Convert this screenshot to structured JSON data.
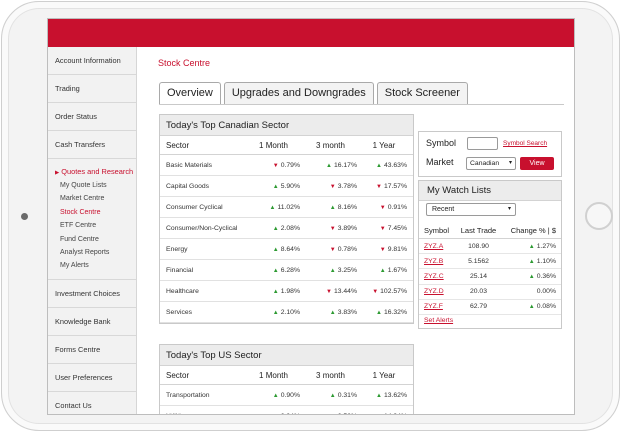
{
  "sidebar": {
    "items_top": [
      "Account Information",
      "Trading",
      "Order Status",
      "Cash Transfers"
    ],
    "group_title": "Quotes and Research",
    "group_items": [
      "My Quote Lists",
      "Market Centre",
      "Stock Centre",
      "ETF Centre",
      "Fund Centre",
      "Analyst Reports",
      "My Alerts"
    ],
    "active_group_item": "Stock Centre",
    "items_bottom": [
      "Investment Choices",
      "Knowledge Bank",
      "Forms Centre",
      "User Preferences",
      "Contact Us"
    ]
  },
  "page": {
    "title": "Stock Centre",
    "tabs": [
      "Overview",
      "Upgrades and Downgrades",
      "Stock Screener"
    ],
    "active_tab": "Overview"
  },
  "canadian_sector": {
    "title": "Today's Top Canadian Sector",
    "headers": [
      "Sector",
      "1 Month",
      "3 month",
      "1 Year"
    ],
    "rows": [
      {
        "sector": "Basic Materials",
        "m1": "0.79%",
        "m1_dir": "down",
        "m3": "16.17%",
        "m3_dir": "up",
        "y1": "43.63%",
        "y1_dir": "up"
      },
      {
        "sector": "Capital Goods",
        "m1": "5.90%",
        "m1_dir": "up",
        "m3": "3.78%",
        "m3_dir": "down",
        "y1": "17.57%",
        "y1_dir": "down"
      },
      {
        "sector": "Consumer Cyclical",
        "m1": "11.02%",
        "m1_dir": "up",
        "m3": "8.16%",
        "m3_dir": "up",
        "y1": "0.91%",
        "y1_dir": "down"
      },
      {
        "sector": "Consumer/Non-Cyclical",
        "m1": "2.08%",
        "m1_dir": "up",
        "m3": "3.89%",
        "m3_dir": "down",
        "y1": "7.45%",
        "y1_dir": "down"
      },
      {
        "sector": "Energy",
        "m1": "8.64%",
        "m1_dir": "up",
        "m3": "0.78%",
        "m3_dir": "down",
        "y1": "9.81%",
        "y1_dir": "down"
      },
      {
        "sector": "Financial",
        "m1": "6.28%",
        "m1_dir": "up",
        "m3": "3.25%",
        "m3_dir": "up",
        "y1": "1.67%",
        "y1_dir": "up"
      },
      {
        "sector": "Healthcare",
        "m1": "1.98%",
        "m1_dir": "up",
        "m3": "13.44%",
        "m3_dir": "down",
        "y1": "102.57%",
        "y1_dir": "down"
      },
      {
        "sector": "Services",
        "m1": "2.10%",
        "m1_dir": "up",
        "m3": "3.83%",
        "m3_dir": "up",
        "y1": "16.32%",
        "y1_dir": "up"
      }
    ]
  },
  "us_sector": {
    "title": "Today's Top US Sector",
    "headers": [
      "Sector",
      "1 Month",
      "3 month",
      "1 Year"
    ],
    "rows": [
      {
        "sector": "Transportation",
        "m1": "0.90%",
        "m1_dir": "up",
        "m3": "0.31%",
        "m3_dir": "up",
        "y1": "13.62%",
        "y1_dir": "up"
      },
      {
        "sector": "Utilities",
        "m1": "2.94%",
        "m1_dir": "up",
        "m3": "2.56%",
        "m3_dir": "up",
        "y1": "14.34%",
        "y1_dir": "up"
      }
    ]
  },
  "symbol_search": {
    "symbol_label": "Symbol",
    "symbol_value": "",
    "search_link": "Symbol Search",
    "market_label": "Market",
    "market_value": "Canadian",
    "view_button": "View"
  },
  "watch_list": {
    "title": "My Watch Lists",
    "selected_list": "Recent",
    "headers": [
      "Symbol",
      "Last Trade",
      "Change % | $"
    ],
    "rows": [
      {
        "symbol": "ZYZ.A",
        "last": "108.90",
        "change": "1.27%",
        "dir": "up"
      },
      {
        "symbol": "ZYZ.B",
        "last": "5.1562",
        "change": "1.10%",
        "dir": "up"
      },
      {
        "symbol": "ZYZ.C",
        "last": "25.14",
        "change": "0.36%",
        "dir": "up"
      },
      {
        "symbol": "ZYZ.D",
        "last": "20.03",
        "change": "0.00%",
        "dir": "none"
      },
      {
        "symbol": "ZYZ.F",
        "last": "62.79",
        "change": "0.08%",
        "dir": "up"
      }
    ],
    "alerts_link": "Set Alerts"
  },
  "colors": {
    "brand": "#c8102e",
    "up": "#2d9a32",
    "down": "#c8102e"
  },
  "icons": {
    "up": "up-arrow-icon",
    "down": "down-arrow-icon",
    "dropdown": "chevron-down-icon"
  }
}
